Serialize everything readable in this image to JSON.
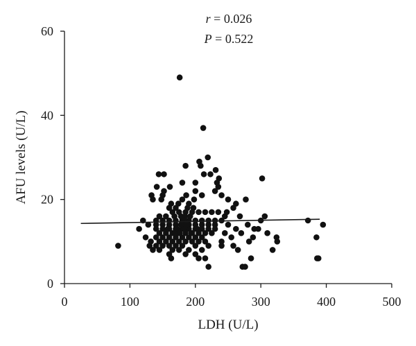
{
  "chart_data": {
    "type": "scatter",
    "title": "",
    "xlabel": "LDH (U/L)",
    "ylabel": "AFU levels (U/L)",
    "xlim": [
      0,
      500
    ],
    "ylim": [
      0,
      60
    ],
    "xticks": [
      "0",
      "100",
      "200",
      "300",
      "400",
      "500"
    ],
    "yticks": [
      "0",
      "20",
      "40",
      "60"
    ],
    "grid": false,
    "legend": "none",
    "annotations": {
      "r_symbol": "r",
      "r_value": "0.026",
      "p_symbol": "P",
      "p_value": "0.522"
    },
    "point_color": "#111111",
    "regression_line": {
      "x": [
        25,
        390
      ],
      "y": [
        14.3,
        15.3
      ]
    },
    "points": [
      [
        176,
        49
      ],
      [
        212,
        37
      ],
      [
        219,
        30
      ],
      [
        206,
        29
      ],
      [
        208,
        28
      ],
      [
        185,
        28
      ],
      [
        231,
        27
      ],
      [
        213,
        26
      ],
      [
        223,
        26
      ],
      [
        144,
        26
      ],
      [
        152,
        26
      ],
      [
        302,
        25
      ],
      [
        236,
        25
      ],
      [
        233,
        24
      ],
      [
        180,
        24
      ],
      [
        200,
        24
      ],
      [
        235,
        23
      ],
      [
        161,
        23
      ],
      [
        141,
        23
      ],
      [
        152,
        22
      ],
      [
        133,
        21
      ],
      [
        150,
        21
      ],
      [
        135,
        20
      ],
      [
        148,
        20
      ],
      [
        230,
        22
      ],
      [
        240,
        21
      ],
      [
        250,
        20
      ],
      [
        277,
        20
      ],
      [
        262,
        19
      ],
      [
        258,
        18
      ],
      [
        200,
        22
      ],
      [
        210,
        21
      ],
      [
        180,
        20
      ],
      [
        190,
        19
      ],
      [
        198,
        20
      ],
      [
        186,
        21
      ],
      [
        170,
        18
      ],
      [
        160,
        18
      ],
      [
        165,
        17
      ],
      [
        175,
        17
      ],
      [
        185,
        17
      ],
      [
        195,
        17
      ],
      [
        205,
        17
      ],
      [
        215,
        17
      ],
      [
        225,
        17
      ],
      [
        235,
        17
      ],
      [
        245,
        16
      ],
      [
        155,
        16
      ],
      [
        145,
        16
      ],
      [
        140,
        15
      ],
      [
        150,
        15
      ],
      [
        160,
        15
      ],
      [
        170,
        15
      ],
      [
        180,
        15
      ],
      [
        190,
        15
      ],
      [
        200,
        15
      ],
      [
        210,
        15
      ],
      [
        220,
        15
      ],
      [
        230,
        15
      ],
      [
        240,
        15
      ],
      [
        140,
        14
      ],
      [
        150,
        14
      ],
      [
        160,
        14
      ],
      [
        170,
        14
      ],
      [
        180,
        14
      ],
      [
        190,
        14
      ],
      [
        200,
        14
      ],
      [
        210,
        14
      ],
      [
        220,
        14
      ],
      [
        230,
        14
      ],
      [
        140,
        13
      ],
      [
        150,
        13
      ],
      [
        160,
        13
      ],
      [
        170,
        13
      ],
      [
        180,
        13
      ],
      [
        190,
        13
      ],
      [
        200,
        13
      ],
      [
        210,
        13
      ],
      [
        220,
        13
      ],
      [
        230,
        13
      ],
      [
        145,
        12
      ],
      [
        155,
        12
      ],
      [
        165,
        12
      ],
      [
        175,
        12
      ],
      [
        185,
        12
      ],
      [
        195,
        12
      ],
      [
        205,
        12
      ],
      [
        215,
        12
      ],
      [
        225,
        12
      ],
      [
        140,
        11
      ],
      [
        150,
        11
      ],
      [
        160,
        11
      ],
      [
        170,
        11
      ],
      [
        180,
        11
      ],
      [
        190,
        11
      ],
      [
        200,
        11
      ],
      [
        210,
        11
      ],
      [
        145,
        10
      ],
      [
        155,
        10
      ],
      [
        165,
        10
      ],
      [
        175,
        10
      ],
      [
        185,
        10
      ],
      [
        195,
        10
      ],
      [
        205,
        10
      ],
      [
        215,
        10
      ],
      [
        130,
        9
      ],
      [
        140,
        9
      ],
      [
        150,
        9
      ],
      [
        160,
        9
      ],
      [
        170,
        9
      ],
      [
        180,
        9
      ],
      [
        200,
        9
      ],
      [
        220,
        9
      ],
      [
        240,
        9
      ],
      [
        135,
        8
      ],
      [
        145,
        8
      ],
      [
        165,
        8
      ],
      [
        175,
        8
      ],
      [
        190,
        8
      ],
      [
        210,
        8
      ],
      [
        160,
        7
      ],
      [
        185,
        7
      ],
      [
        200,
        7
      ],
      [
        163,
        6
      ],
      [
        205,
        6
      ],
      [
        215,
        6
      ],
      [
        220,
        4
      ],
      [
        272,
        4
      ],
      [
        276,
        4
      ],
      [
        285,
        6
      ],
      [
        318,
        8
      ],
      [
        82,
        9
      ],
      [
        114,
        13
      ],
      [
        120,
        15
      ],
      [
        128,
        14
      ],
      [
        124,
        11
      ],
      [
        132,
        10
      ],
      [
        262,
        13
      ],
      [
        270,
        12
      ],
      [
        280,
        14
      ],
      [
        288,
        11
      ],
      [
        296,
        13
      ],
      [
        306,
        16
      ],
      [
        310,
        12
      ],
      [
        324,
        11
      ],
      [
        325,
        10
      ],
      [
        372,
        15
      ],
      [
        385,
        11
      ],
      [
        395,
        14
      ],
      [
        386,
        6
      ],
      [
        388,
        6
      ],
      [
        250,
        14
      ],
      [
        255,
        11
      ],
      [
        245,
        12
      ],
      [
        268,
        16
      ],
      [
        248,
        17
      ],
      [
        300,
        15
      ],
      [
        290,
        13
      ],
      [
        282,
        10
      ],
      [
        258,
        9
      ],
      [
        265,
        8
      ],
      [
        240,
        10
      ],
      [
        163,
        19
      ],
      [
        174,
        19
      ],
      [
        188,
        18
      ],
      [
        197,
        18
      ],
      [
        178,
        16
      ],
      [
        168,
        16
      ],
      [
        184,
        16
      ],
      [
        192,
        16
      ],
      [
        172,
        13
      ],
      [
        182,
        13
      ],
      [
        176,
        12
      ],
      [
        183,
        15
      ],
      [
        178,
        14
      ],
      [
        168,
        12
      ],
      [
        158,
        13
      ],
      [
        194,
        12
      ],
      [
        203,
        13
      ],
      [
        187,
        14
      ]
    ]
  }
}
